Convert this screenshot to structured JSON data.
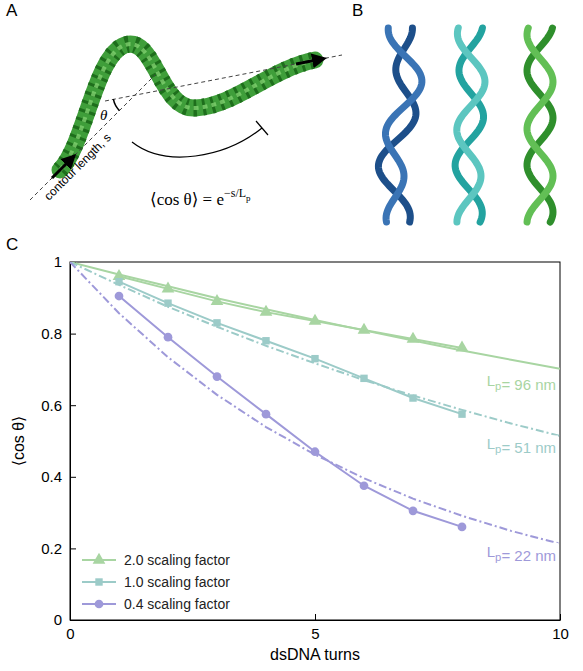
{
  "chart_data": {
    "type": "line",
    "xlabel": "dsDNA turns",
    "ylabel": "⟨cos θ⟩",
    "xlim": [
      0,
      10
    ],
    "xticks": [
      0,
      5,
      10
    ],
    "ylim": [
      0,
      1
    ],
    "yticks": [
      0,
      0.2,
      0.4,
      0.6,
      0.8,
      1
    ],
    "legend": "lower left",
    "series": [
      {
        "name": "2.0 scaling factor",
        "color": "#a8d5a2",
        "marker": "triangle",
        "line_style": "solid",
        "x": [
          1,
          2,
          3,
          4,
          5,
          6,
          7,
          8
        ],
        "values": [
          0.96,
          0.925,
          0.89,
          0.86,
          0.835,
          0.81,
          0.785,
          0.76
        ]
      },
      {
        "name": "1.0 scaling factor",
        "color": "#9ccbc8",
        "marker": "square",
        "line_style": "solid",
        "x": [
          1,
          2,
          3,
          4,
          5,
          6,
          7,
          8
        ],
        "values": [
          0.945,
          0.885,
          0.83,
          0.78,
          0.73,
          0.675,
          0.62,
          0.575
        ]
      },
      {
        "name": "0.4 scaling factor",
        "color": "#9e99d9",
        "marker": "circle",
        "line_style": "solid",
        "x": [
          1,
          2,
          3,
          4,
          5,
          6,
          7,
          8
        ],
        "values": [
          0.905,
          0.79,
          0.68,
          0.575,
          0.47,
          0.375,
          0.305,
          0.26
        ]
      },
      {
        "name": "Lp= 96 nm",
        "color": "#a8d5a2",
        "marker": "none",
        "line_style": "solid",
        "x": [
          0,
          1,
          2,
          3,
          4,
          5,
          6,
          7,
          8,
          9,
          10
        ],
        "values": [
          1,
          0.965,
          0.932,
          0.899,
          0.868,
          0.838,
          0.809,
          0.781,
          0.753,
          0.727,
          0.702
        ]
      },
      {
        "name": "Lp= 51 nm",
        "color": "#9ccbc8",
        "marker": "none",
        "line_style": "dashdot",
        "x": [
          0,
          1,
          2,
          3,
          4,
          5,
          6,
          7,
          8,
          9,
          10
        ],
        "values": [
          1,
          0.936,
          0.875,
          0.819,
          0.766,
          0.717,
          0.67,
          0.627,
          0.587,
          0.549,
          0.514
        ]
      },
      {
        "name": "Lp= 22 nm",
        "color": "#9e99d9",
        "marker": "none",
        "line_style": "dashdot",
        "x": [
          0,
          1,
          2,
          3,
          4,
          5,
          6,
          7,
          8,
          9,
          10
        ],
        "values": [
          1,
          0.857,
          0.734,
          0.629,
          0.539,
          0.462,
          0.396,
          0.339,
          0.291,
          0.249,
          0.213
        ]
      }
    ]
  },
  "figure": {
    "panel_labels": [
      "A",
      "B",
      "C"
    ],
    "diagram": {
      "angle": "θ",
      "contour": "contour length, s",
      "equation": "⟨cos θ⟩ = e",
      "exponent": "−s/Lp"
    }
  }
}
